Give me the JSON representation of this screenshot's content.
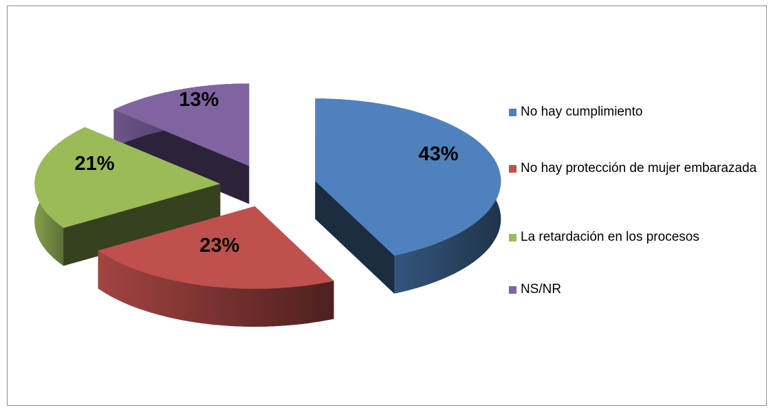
{
  "chart_data": {
    "type": "pie",
    "categories": [
      "No hay cumplimiento",
      "No hay protección de mujer embarazada",
      "La retardación en los procesos",
      "NS/NR"
    ],
    "values": [
      43,
      23,
      21,
      13
    ],
    "value_labels": [
      "43%",
      "23%",
      "21%",
      "13%"
    ],
    "colors": [
      "#4f81bd",
      "#c0504d",
      "#9bbb59",
      "#8064a2"
    ],
    "legend": "right"
  }
}
